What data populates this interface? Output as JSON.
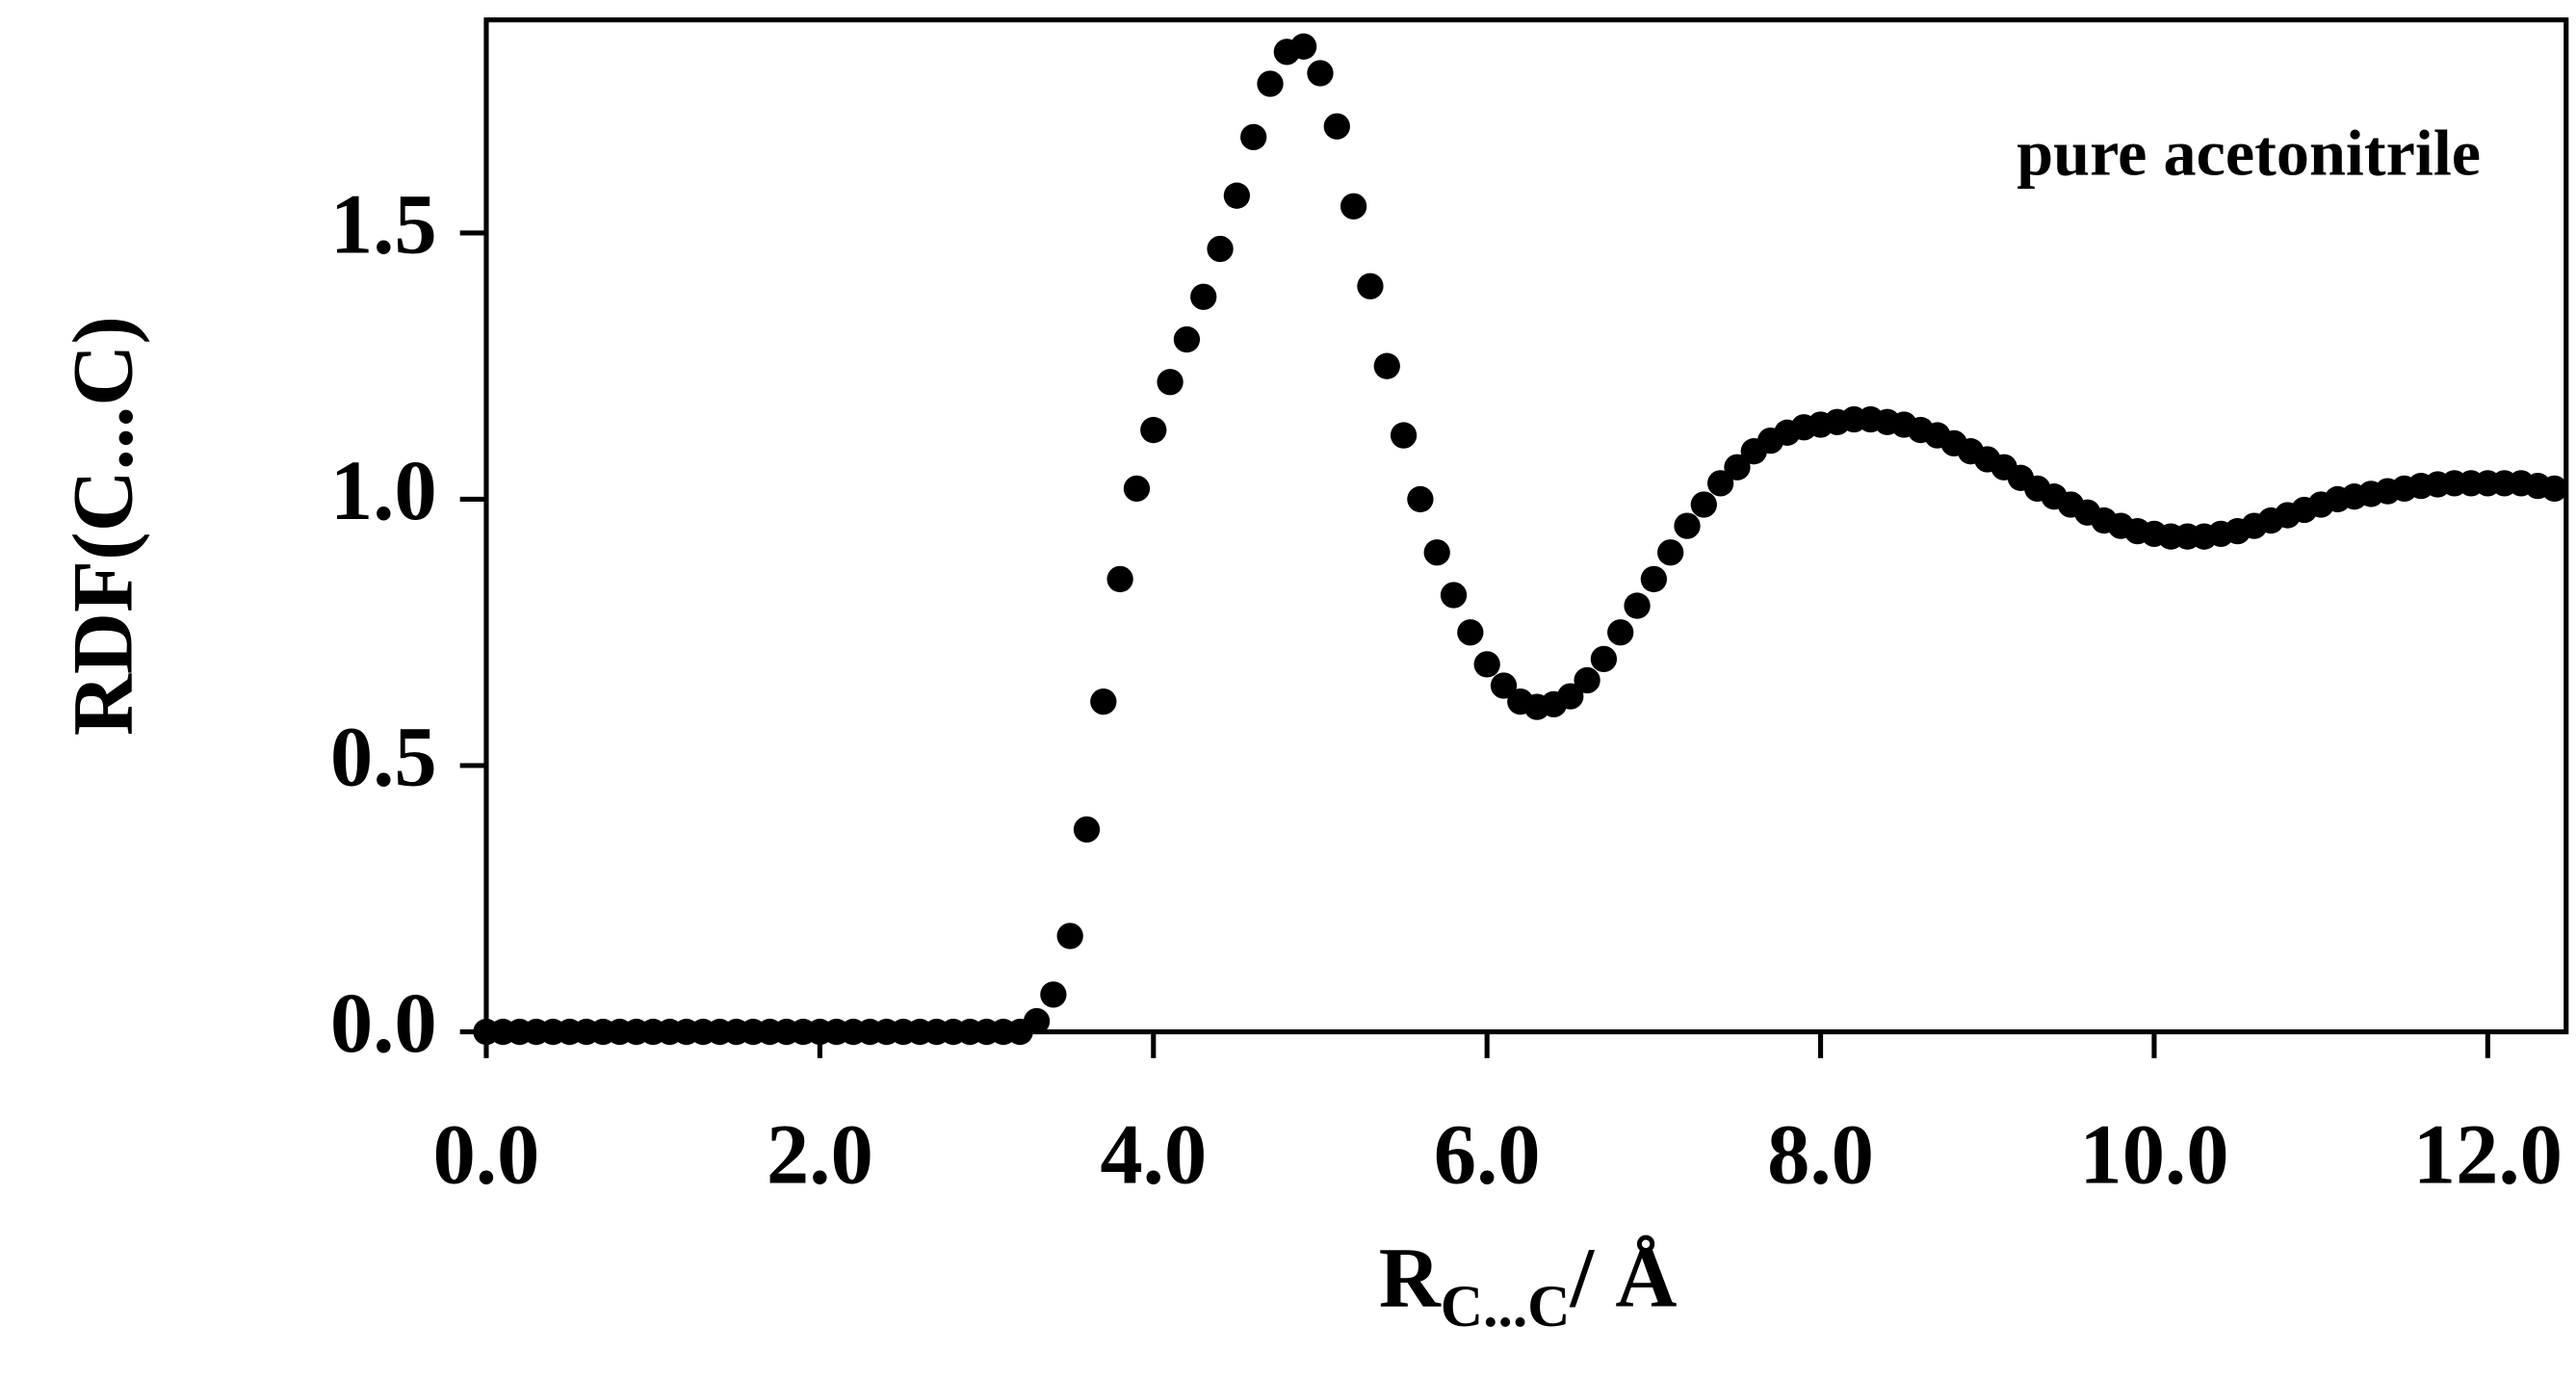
{
  "chart_data": {
    "type": "scatter",
    "annotation": "pure acetonitrile",
    "y_label": "RDF(C...C)",
    "x_label": {
      "main": "R",
      "subscript": "C...C",
      "unit": "/ Å"
    },
    "color": "#000000",
    "xlim": [
      0,
      12.47
    ],
    "ylim": [
      0,
      1.9
    ],
    "xticks": [
      {
        "value": 0,
        "label": "0.0"
      },
      {
        "value": 2,
        "label": "2.0"
      },
      {
        "value": 4,
        "label": "4.0"
      },
      {
        "value": 6,
        "label": "6.0"
      },
      {
        "value": 8,
        "label": "8.0"
      },
      {
        "value": 10,
        "label": "10.0"
      },
      {
        "value": 12,
        "label": "12.0"
      }
    ],
    "yticks": [
      {
        "value": 0,
        "label": "0.0"
      },
      {
        "value": 0.5,
        "label": "0.5"
      },
      {
        "value": 1,
        "label": "1.0"
      },
      {
        "value": 1.5,
        "label": "1.5"
      }
    ],
    "x": [
      0,
      0.1,
      0.2,
      0.3,
      0.4,
      0.5,
      0.6,
      0.7,
      0.8,
      0.9,
      1.0,
      1.1,
      1.2,
      1.3,
      1.4,
      1.5,
      1.6,
      1.7,
      1.8,
      1.9,
      2.0,
      2.1,
      2.2,
      2.3,
      2.4,
      2.5,
      2.6,
      2.7,
      2.8,
      2.9,
      3.0,
      3.1,
      3.2,
      3.3,
      3.4,
      3.5,
      3.6,
      3.7,
      3.8,
      3.9,
      4.0,
      4.1,
      4.2,
      4.3,
      4.4,
      4.5,
      4.6,
      4.7,
      4.8,
      4.9,
      5.0,
      5.1,
      5.2,
      5.3,
      5.4,
      5.5,
      5.6,
      5.7,
      5.8,
      5.9,
      6.0,
      6.1,
      6.2,
      6.3,
      6.4,
      6.5,
      6.6,
      6.7,
      6.8,
      6.9,
      7.0,
      7.1,
      7.2,
      7.3,
      7.4,
      7.5,
      7.6,
      7.7,
      7.8,
      7.9,
      8.0,
      8.1,
      8.2,
      8.3,
      8.4,
      8.5,
      8.6,
      8.7,
      8.8,
      8.9,
      9.0,
      9.1,
      9.2,
      9.3,
      9.4,
      9.5,
      9.6,
      9.7,
      9.8,
      9.9,
      10.0,
      10.1,
      10.2,
      10.3,
      10.4,
      10.5,
      10.6,
      10.7,
      10.8,
      10.9,
      11.0,
      11.1,
      11.2,
      11.3,
      11.4,
      11.5,
      11.6,
      11.7,
      11.8,
      11.9,
      12.0,
      12.1,
      12.2,
      12.3,
      12.4
    ],
    "values": [
      0,
      0,
      0,
      0,
      0,
      0,
      0,
      0,
      0,
      0,
      0,
      0,
      0,
      0,
      0,
      0,
      0,
      0,
      0,
      0,
      0,
      0,
      0,
      0,
      0,
      0,
      0,
      0,
      0,
      0,
      0,
      0,
      0,
      0.02,
      0.07,
      0.18,
      0.38,
      0.62,
      0.85,
      1.02,
      1.13,
      1.22,
      1.3,
      1.38,
      1.47,
      1.57,
      1.68,
      1.78,
      1.84,
      1.85,
      1.8,
      1.7,
      1.55,
      1.4,
      1.25,
      1.12,
      1.0,
      0.9,
      0.82,
      0.75,
      0.69,
      0.65,
      0.62,
      0.61,
      0.615,
      0.63,
      0.66,
      0.7,
      0.75,
      0.8,
      0.85,
      0.9,
      0.95,
      0.99,
      1.03,
      1.06,
      1.09,
      1.11,
      1.125,
      1.135,
      1.14,
      1.145,
      1.15,
      1.15,
      1.145,
      1.14,
      1.13,
      1.12,
      1.105,
      1.09,
      1.075,
      1.06,
      1.04,
      1.02,
      1.005,
      0.99,
      0.975,
      0.96,
      0.95,
      0.94,
      0.935,
      0.93,
      0.93,
      0.93,
      0.935,
      0.94,
      0.95,
      0.96,
      0.97,
      0.98,
      0.99,
      1.0,
      1.005,
      1.01,
      1.015,
      1.02,
      1.025,
      1.028,
      1.03,
      1.03,
      1.03,
      1.03,
      1.03,
      1.025,
      1.02
    ]
  }
}
